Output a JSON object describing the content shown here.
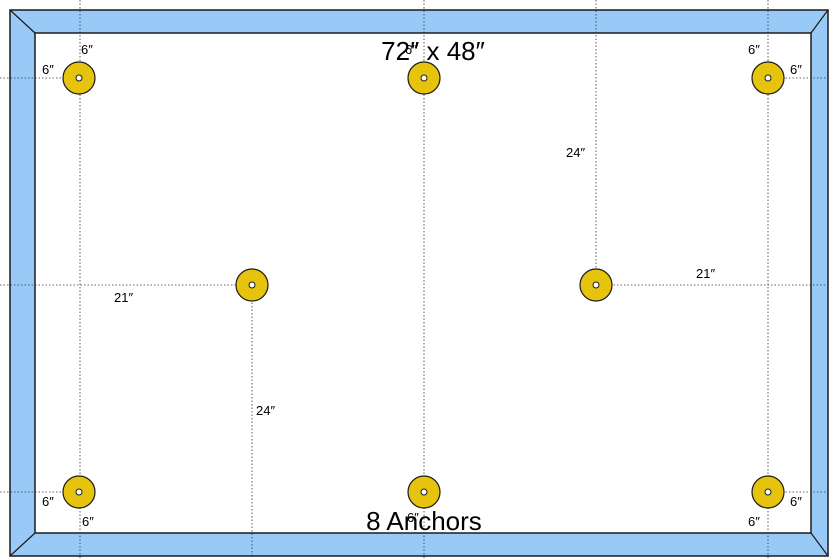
{
  "title": "72″ x 48″",
  "footer": "8 Anchors",
  "colors": {
    "frame_fill": "#99c9f7",
    "frame_stroke": "#1a1a1a",
    "panel_fill": "#ffffff",
    "anchor_fill": "#e6c30c",
    "anchor_stroke": "#1a1a1a"
  },
  "labels": {
    "tl_top": "6″",
    "tl_left": "6″",
    "tc_top": "6″",
    "tr_top": "6″",
    "tr_right": "6″",
    "right_mid_vertical": "24″",
    "left_mid_horizontal": "21″",
    "right_mid_horizontal": "21″",
    "left_mid_vertical": "24″",
    "bl_left": "6″",
    "bl_bottom": "6″",
    "bc_bottom": "6″",
    "br_bottom": "6″",
    "br_right": "6″"
  }
}
